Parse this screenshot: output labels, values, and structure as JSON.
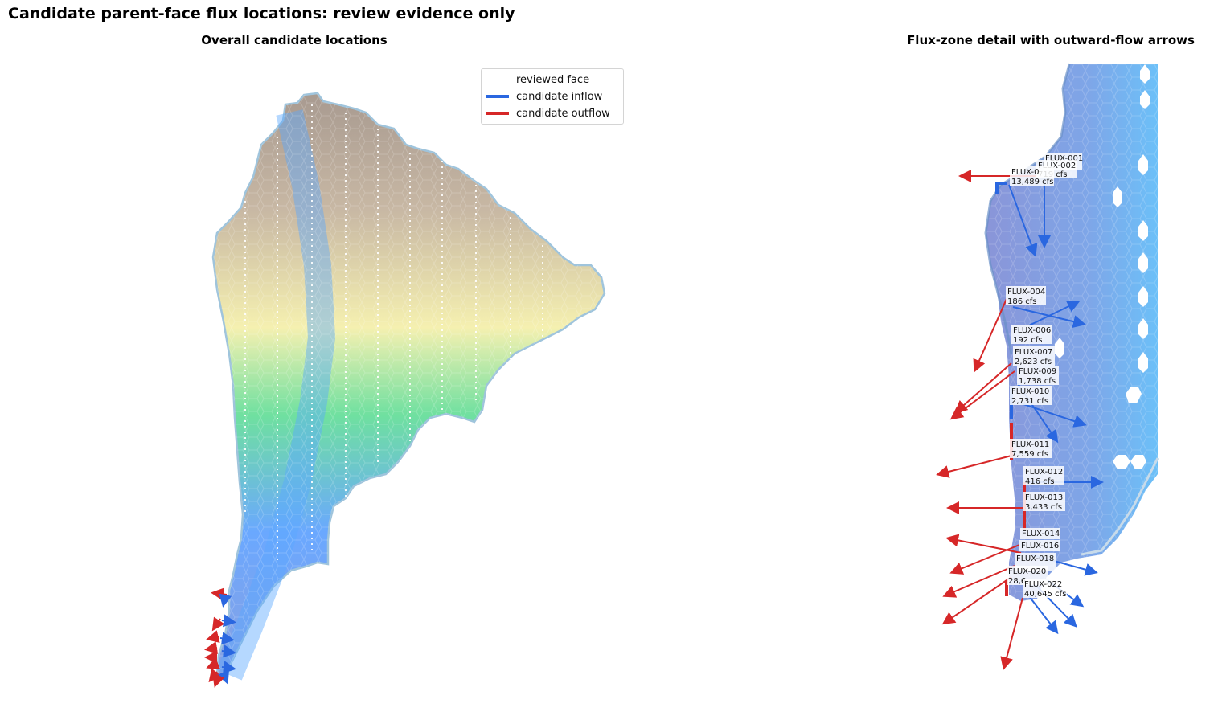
{
  "title": "Candidate parent-face flux locations: review evidence only",
  "panels": {
    "left_title": "Overall candidate locations",
    "right_title": "Flux-zone detail with outward-flow arrows"
  },
  "legend": {
    "placement": "upper-right of left panel",
    "items": [
      {
        "label": "reviewed face",
        "color": "#dde6ef"
      },
      {
        "label": "candidate inflow",
        "color": "#2a67e0"
      },
      {
        "label": "candidate outflow",
        "color": "#d62728"
      }
    ]
  },
  "colors": {
    "inflow": "#2a67e0",
    "outflow": "#d62728",
    "terrain_low": "#6aa8ff",
    "terrain_mid": "#6fe0a0",
    "terrain_high": "#f5f0b0",
    "terrain_peak": "#a89a90"
  },
  "flux_labels": [
    {
      "id": "FLUX-001",
      "value": ""
    },
    {
      "id": "FLUX-002",
      "value": "719 cfs"
    },
    {
      "id": "FLUX-0",
      "value": "13,489 cfs"
    },
    {
      "id": "FLUX-004",
      "value": "186 cfs"
    },
    {
      "id": "FLUX-006",
      "value": "192 cfs"
    },
    {
      "id": "FLUX-007",
      "value": "2,623 cfs"
    },
    {
      "id": "FLUX-009",
      "value": "1,738 cfs"
    },
    {
      "id": "FLUX-010",
      "value": "2,731 cfs"
    },
    {
      "id": "FLUX-011",
      "value": "7,559 cfs"
    },
    {
      "id": "FLUX-012",
      "value": "416 cfs"
    },
    {
      "id": "FLUX-013",
      "value": "3,433 cfs"
    },
    {
      "id": "FLUX-014",
      "value": ""
    },
    {
      "id": "FLUX-016",
      "value": ""
    },
    {
      "id": "FLUX-018",
      "value": ""
    },
    {
      "id": "FLUX-020",
      "value": "28,6"
    },
    {
      "id": "FLUX-022",
      "value": "40,645 cfs"
    }
  ]
}
